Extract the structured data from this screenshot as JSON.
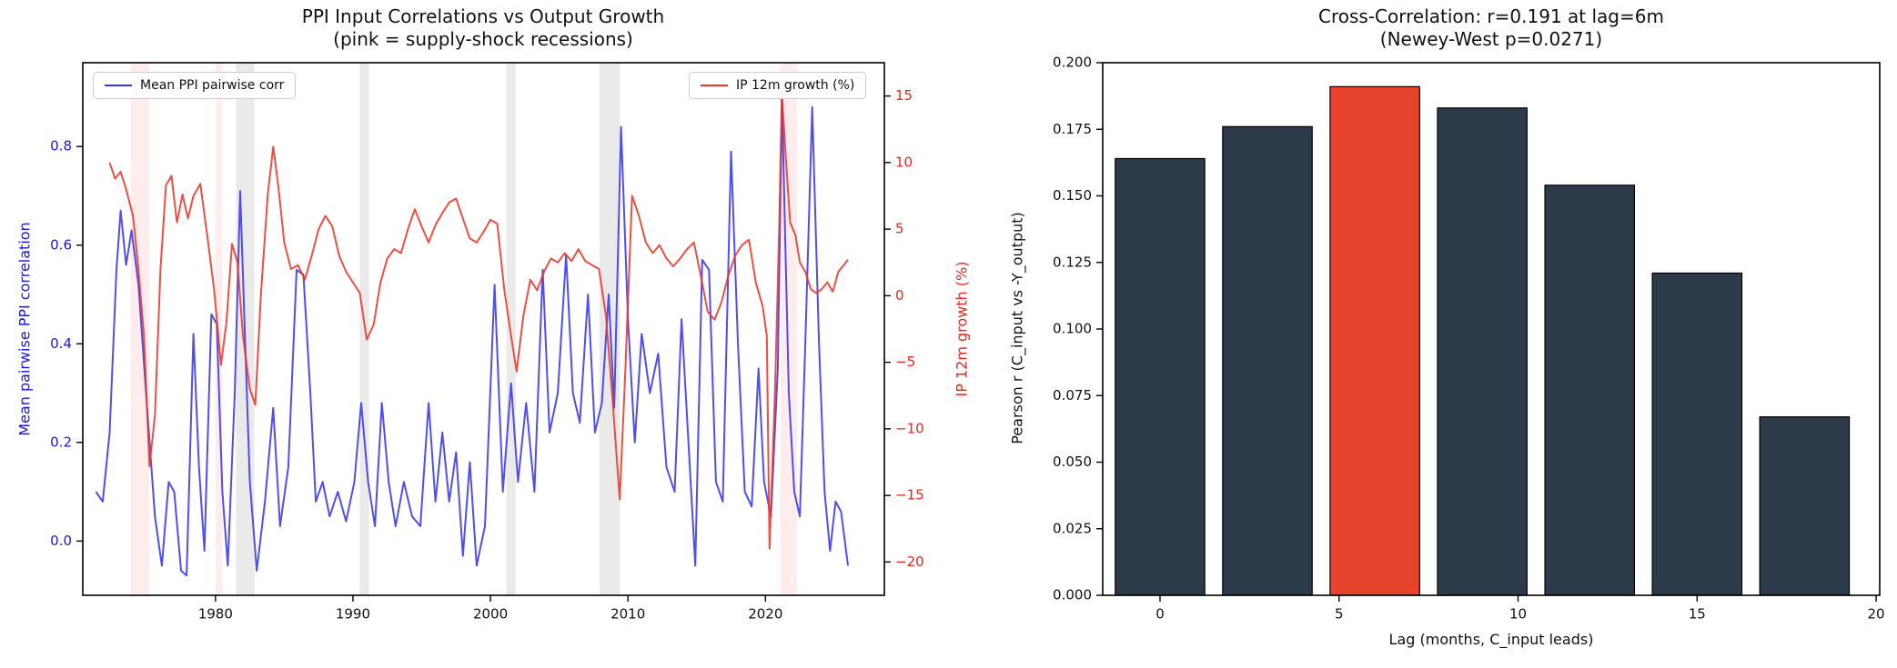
{
  "figure": {
    "background": "#ffffff"
  },
  "colors": {
    "ppi_line": "#3535f2",
    "ip_line": "#ee3527",
    "blue_axis_text": "#1818e6",
    "red_axis_text": "#ee2418",
    "pink_band": "rgba(255,70,70,0.10)",
    "gray_band": "rgba(125,125,125,0.16)",
    "bar": "#2c3a49",
    "bar_highlight": "#e8432c",
    "bar_edge": "#000000",
    "axis": "#000000"
  },
  "chart_data": [
    {
      "type": "line",
      "title": "PPI Input Correlations vs Output Growth",
      "subtitle": "(pink = supply-shock recessions)",
      "ylabel_left": "Mean pairwise PPI correlation",
      "ylabel_right": "IP 12m growth (%)",
      "legend_left": "Mean PPI pairwise corr",
      "legend_right": "IP 12m growth (%)",
      "xlim": [
        1970.35,
        2028.65
      ],
      "ylim_left": [
        -0.11,
        0.97
      ],
      "ylim_right": [
        -22.5,
        17.5
      ],
      "xticks": {
        "values": [
          1980,
          1990,
          2000,
          2010,
          2020
        ],
        "labels": [
          "1980",
          "1990",
          "2000",
          "2010",
          "2020"
        ]
      },
      "yticks_left": {
        "values": [
          0.0,
          0.2,
          0.4,
          0.6,
          0.8
        ],
        "labels": [
          "0.0",
          "0.2",
          "0.4",
          "0.6",
          "0.8"
        ]
      },
      "yticks_right": {
        "values": [
          15,
          10,
          5,
          0,
          -5,
          -10,
          -15,
          -20
        ],
        "labels": [
          "15",
          "10",
          "5",
          "0",
          "−5",
          "−10",
          "−15",
          "−20"
        ]
      },
      "recession_bands": {
        "pink": [
          [
            1973.83,
            1975.17
          ],
          [
            1980.0,
            1980.5
          ],
          [
            2021.1,
            2022.3
          ]
        ],
        "gray": [
          [
            1981.5,
            1982.83
          ],
          [
            1990.5,
            1991.17
          ],
          [
            2001.17,
            2001.83
          ],
          [
            2007.92,
            2009.42
          ]
        ]
      },
      "series": [
        {
          "name": "Mean PPI pairwise corr",
          "axis": "left",
          "color_key": "ppi_line",
          "points": [
            [
              1971.3,
              0.1
            ],
            [
              1971.8,
              0.08
            ],
            [
              1972.3,
              0.22
            ],
            [
              1972.8,
              0.55
            ],
            [
              1973.1,
              0.67
            ],
            [
              1973.5,
              0.56
            ],
            [
              1973.9,
              0.63
            ],
            [
              1974.4,
              0.52
            ],
            [
              1975.0,
              0.28
            ],
            [
              1975.6,
              0.05
            ],
            [
              1976.1,
              -0.05
            ],
            [
              1976.6,
              0.12
            ],
            [
              1977.0,
              0.1
            ],
            [
              1977.5,
              -0.06
            ],
            [
              1977.9,
              -0.07
            ],
            [
              1978.4,
              0.42
            ],
            [
              1978.8,
              0.15
            ],
            [
              1979.2,
              -0.02
            ],
            [
              1979.7,
              0.46
            ],
            [
              1980.1,
              0.44
            ],
            [
              1980.5,
              0.1
            ],
            [
              1980.9,
              -0.05
            ],
            [
              1981.4,
              0.3
            ],
            [
              1981.8,
              0.71
            ],
            [
              1982.1,
              0.45
            ],
            [
              1982.5,
              0.12
            ],
            [
              1983.0,
              -0.06
            ],
            [
              1983.6,
              0.08
            ],
            [
              1984.2,
              0.27
            ],
            [
              1984.7,
              0.03
            ],
            [
              1985.3,
              0.15
            ],
            [
              1985.9,
              0.55
            ],
            [
              1986.4,
              0.54
            ],
            [
              1986.9,
              0.3
            ],
            [
              1987.3,
              0.08
            ],
            [
              1987.8,
              0.12
            ],
            [
              1988.3,
              0.05
            ],
            [
              1988.9,
              0.1
            ],
            [
              1989.5,
              0.04
            ],
            [
              1990.1,
              0.12
            ],
            [
              1990.6,
              0.28
            ],
            [
              1991.1,
              0.12
            ],
            [
              1991.6,
              0.03
            ],
            [
              1992.1,
              0.28
            ],
            [
              1992.6,
              0.12
            ],
            [
              1993.1,
              0.03
            ],
            [
              1993.7,
              0.12
            ],
            [
              1994.3,
              0.05
            ],
            [
              1994.9,
              0.03
            ],
            [
              1995.5,
              0.28
            ],
            [
              1996.0,
              0.08
            ],
            [
              1996.5,
              0.22
            ],
            [
              1997.0,
              0.08
            ],
            [
              1997.5,
              0.18
            ],
            [
              1998.0,
              -0.03
            ],
            [
              1998.5,
              0.16
            ],
            [
              1999.0,
              -0.05
            ],
            [
              1999.6,
              0.03
            ],
            [
              2000.3,
              0.52
            ],
            [
              2000.9,
              0.1
            ],
            [
              2001.5,
              0.32
            ],
            [
              2002.0,
              0.12
            ],
            [
              2002.6,
              0.28
            ],
            [
              2003.2,
              0.1
            ],
            [
              2003.8,
              0.55
            ],
            [
              2004.3,
              0.22
            ],
            [
              2004.9,
              0.3
            ],
            [
              2005.5,
              0.58
            ],
            [
              2006.0,
              0.3
            ],
            [
              2006.5,
              0.24
            ],
            [
              2007.1,
              0.5
            ],
            [
              2007.6,
              0.22
            ],
            [
              2008.1,
              0.28
            ],
            [
              2008.6,
              0.5
            ],
            [
              2009.0,
              0.27
            ],
            [
              2009.5,
              0.84
            ],
            [
              2010.0,
              0.45
            ],
            [
              2010.5,
              0.2
            ],
            [
              2011.0,
              0.42
            ],
            [
              2011.6,
              0.3
            ],
            [
              2012.2,
              0.38
            ],
            [
              2012.8,
              0.15
            ],
            [
              2013.4,
              0.1
            ],
            [
              2013.9,
              0.45
            ],
            [
              2014.4,
              0.2
            ],
            [
              2014.9,
              -0.05
            ],
            [
              2015.4,
              0.57
            ],
            [
              2015.9,
              0.55
            ],
            [
              2016.4,
              0.12
            ],
            [
              2016.9,
              0.08
            ],
            [
              2017.5,
              0.79
            ],
            [
              2018.0,
              0.4
            ],
            [
              2018.5,
              0.1
            ],
            [
              2019.0,
              0.07
            ],
            [
              2019.5,
              0.35
            ],
            [
              2019.9,
              0.12
            ],
            [
              2020.4,
              0.05
            ],
            [
              2020.9,
              0.35
            ],
            [
              2021.2,
              0.9
            ],
            [
              2021.7,
              0.3
            ],
            [
              2022.1,
              0.1
            ],
            [
              2022.5,
              0.05
            ],
            [
              2022.9,
              0.4
            ],
            [
              2023.4,
              0.88
            ],
            [
              2023.9,
              0.4
            ],
            [
              2024.3,
              0.1
            ],
            [
              2024.7,
              -0.02
            ],
            [
              2025.1,
              0.08
            ],
            [
              2025.5,
              0.06
            ],
            [
              2026.0,
              -0.05
            ]
          ]
        },
        {
          "name": "IP 12m growth (%)",
          "axis": "right",
          "color_key": "ip_line",
          "points": [
            [
              1972.3,
              10.0
            ],
            [
              1972.7,
              8.8
            ],
            [
              1973.1,
              9.3
            ],
            [
              1973.5,
              8.0
            ],
            [
              1974.0,
              6.0
            ],
            [
              1974.4,
              2.0
            ],
            [
              1974.8,
              -3.0
            ],
            [
              1975.2,
              -12.8
            ],
            [
              1975.6,
              -9.0
            ],
            [
              1976.0,
              2.0
            ],
            [
              1976.4,
              8.3
            ],
            [
              1976.8,
              9.0
            ],
            [
              1977.2,
              5.5
            ],
            [
              1977.6,
              7.6
            ],
            [
              1978.0,
              5.8
            ],
            [
              1978.4,
              7.5
            ],
            [
              1978.9,
              8.4
            ],
            [
              1979.4,
              4.5
            ],
            [
              1979.9,
              0.5
            ],
            [
              1980.4,
              -5.2
            ],
            [
              1980.8,
              -2.0
            ],
            [
              1981.2,
              3.9
            ],
            [
              1981.6,
              2.5
            ],
            [
              1982.0,
              -3.0
            ],
            [
              1982.5,
              -7.0
            ],
            [
              1982.9,
              -8.2
            ],
            [
              1983.3,
              0.0
            ],
            [
              1983.8,
              7.5
            ],
            [
              1984.2,
              11.2
            ],
            [
              1984.6,
              8.0
            ],
            [
              1985.0,
              4.0
            ],
            [
              1985.5,
              2.0
            ],
            [
              1986.0,
              2.3
            ],
            [
              1986.5,
              1.2
            ],
            [
              1987.0,
              3.0
            ],
            [
              1987.5,
              5.0
            ],
            [
              1988.0,
              6.0
            ],
            [
              1988.5,
              5.2
            ],
            [
              1989.0,
              3.0
            ],
            [
              1989.5,
              1.8
            ],
            [
              1990.0,
              1.0
            ],
            [
              1990.5,
              0.2
            ],
            [
              1991.0,
              -3.3
            ],
            [
              1991.5,
              -2.2
            ],
            [
              1992.0,
              1.0
            ],
            [
              1992.5,
              2.8
            ],
            [
              1993.0,
              3.5
            ],
            [
              1993.5,
              3.2
            ],
            [
              1994.0,
              5.0
            ],
            [
              1994.5,
              6.5
            ],
            [
              1995.0,
              5.2
            ],
            [
              1995.5,
              4.0
            ],
            [
              1996.0,
              5.3
            ],
            [
              1996.5,
              6.2
            ],
            [
              1997.0,
              7.0
            ],
            [
              1997.5,
              7.3
            ],
            [
              1998.0,
              5.8
            ],
            [
              1998.5,
              4.3
            ],
            [
              1999.0,
              4.0
            ],
            [
              1999.5,
              4.8
            ],
            [
              2000.0,
              5.7
            ],
            [
              2000.5,
              5.4
            ],
            [
              2001.0,
              0.5
            ],
            [
              2001.5,
              -3.0
            ],
            [
              2001.9,
              -5.7
            ],
            [
              2002.4,
              -1.5
            ],
            [
              2002.9,
              1.2
            ],
            [
              2003.4,
              0.4
            ],
            [
              2003.9,
              1.8
            ],
            [
              2004.4,
              2.8
            ],
            [
              2004.9,
              2.5
            ],
            [
              2005.4,
              3.2
            ],
            [
              2005.9,
              2.6
            ],
            [
              2006.4,
              3.5
            ],
            [
              2006.9,
              2.6
            ],
            [
              2007.4,
              2.3
            ],
            [
              2007.9,
              2.0
            ],
            [
              2008.4,
              -1.5
            ],
            [
              2008.9,
              -8.0
            ],
            [
              2009.4,
              -15.3
            ],
            [
              2009.8,
              -6.0
            ],
            [
              2010.3,
              7.5
            ],
            [
              2010.8,
              6.0
            ],
            [
              2011.3,
              4.0
            ],
            [
              2011.8,
              3.2
            ],
            [
              2012.3,
              3.8
            ],
            [
              2012.8,
              2.8
            ],
            [
              2013.3,
              2.2
            ],
            [
              2013.8,
              2.8
            ],
            [
              2014.3,
              3.5
            ],
            [
              2014.8,
              4.0
            ],
            [
              2015.3,
              1.5
            ],
            [
              2015.8,
              -1.2
            ],
            [
              2016.3,
              -1.8
            ],
            [
              2016.8,
              -0.5
            ],
            [
              2017.3,
              1.5
            ],
            [
              2017.8,
              3.0
            ],
            [
              2018.3,
              3.8
            ],
            [
              2018.8,
              4.2
            ],
            [
              2019.3,
              1.0
            ],
            [
              2019.8,
              -0.8
            ],
            [
              2020.1,
              -3.0
            ],
            [
              2020.3,
              -19.0
            ],
            [
              2020.7,
              -7.0
            ],
            [
              2021.0,
              5.0
            ],
            [
              2021.2,
              15.2
            ],
            [
              2021.5,
              10.0
            ],
            [
              2021.8,
              5.5
            ],
            [
              2022.2,
              4.5
            ],
            [
              2022.5,
              2.5
            ],
            [
              2022.9,
              1.8
            ],
            [
              2023.3,
              0.5
            ],
            [
              2023.7,
              0.2
            ],
            [
              2024.1,
              0.5
            ],
            [
              2024.5,
              1.0
            ],
            [
              2024.9,
              0.3
            ],
            [
              2025.3,
              1.8
            ],
            [
              2025.7,
              2.3
            ],
            [
              2026.0,
              2.7
            ]
          ]
        }
      ]
    },
    {
      "type": "bar",
      "title": "Cross-Correlation: r=0.191 at lag=6m",
      "subtitle": "(Newey-West p=0.0271)",
      "xlabel": "Lag (months, C_input leads)",
      "ylabel": "Pearson r (C_input vs -Y_output)",
      "xlim": [
        -1.6,
        20.1
      ],
      "ylim": [
        0,
        0.2
      ],
      "bar_width": 2.5,
      "lags": [
        0,
        3,
        6,
        9,
        12,
        15,
        18
      ],
      "values": [
        0.164,
        0.176,
        0.191,
        0.183,
        0.154,
        0.121,
        0.067
      ],
      "highlight_lag": 6,
      "peak_r": "0.191",
      "peak_lag": "6m",
      "newey_west_p": "0.0271",
      "xticks": {
        "values": [
          0,
          5,
          10,
          15,
          20
        ],
        "labels": [
          "0",
          "5",
          "10",
          "15",
          "20"
        ]
      },
      "yticks": {
        "values": [
          0.0,
          0.025,
          0.05,
          0.075,
          0.1,
          0.125,
          0.15,
          0.175,
          0.2
        ],
        "labels": [
          "0.000",
          "0.025",
          "0.050",
          "0.075",
          "0.100",
          "0.125",
          "0.150",
          "0.175",
          "0.200"
        ]
      }
    }
  ]
}
